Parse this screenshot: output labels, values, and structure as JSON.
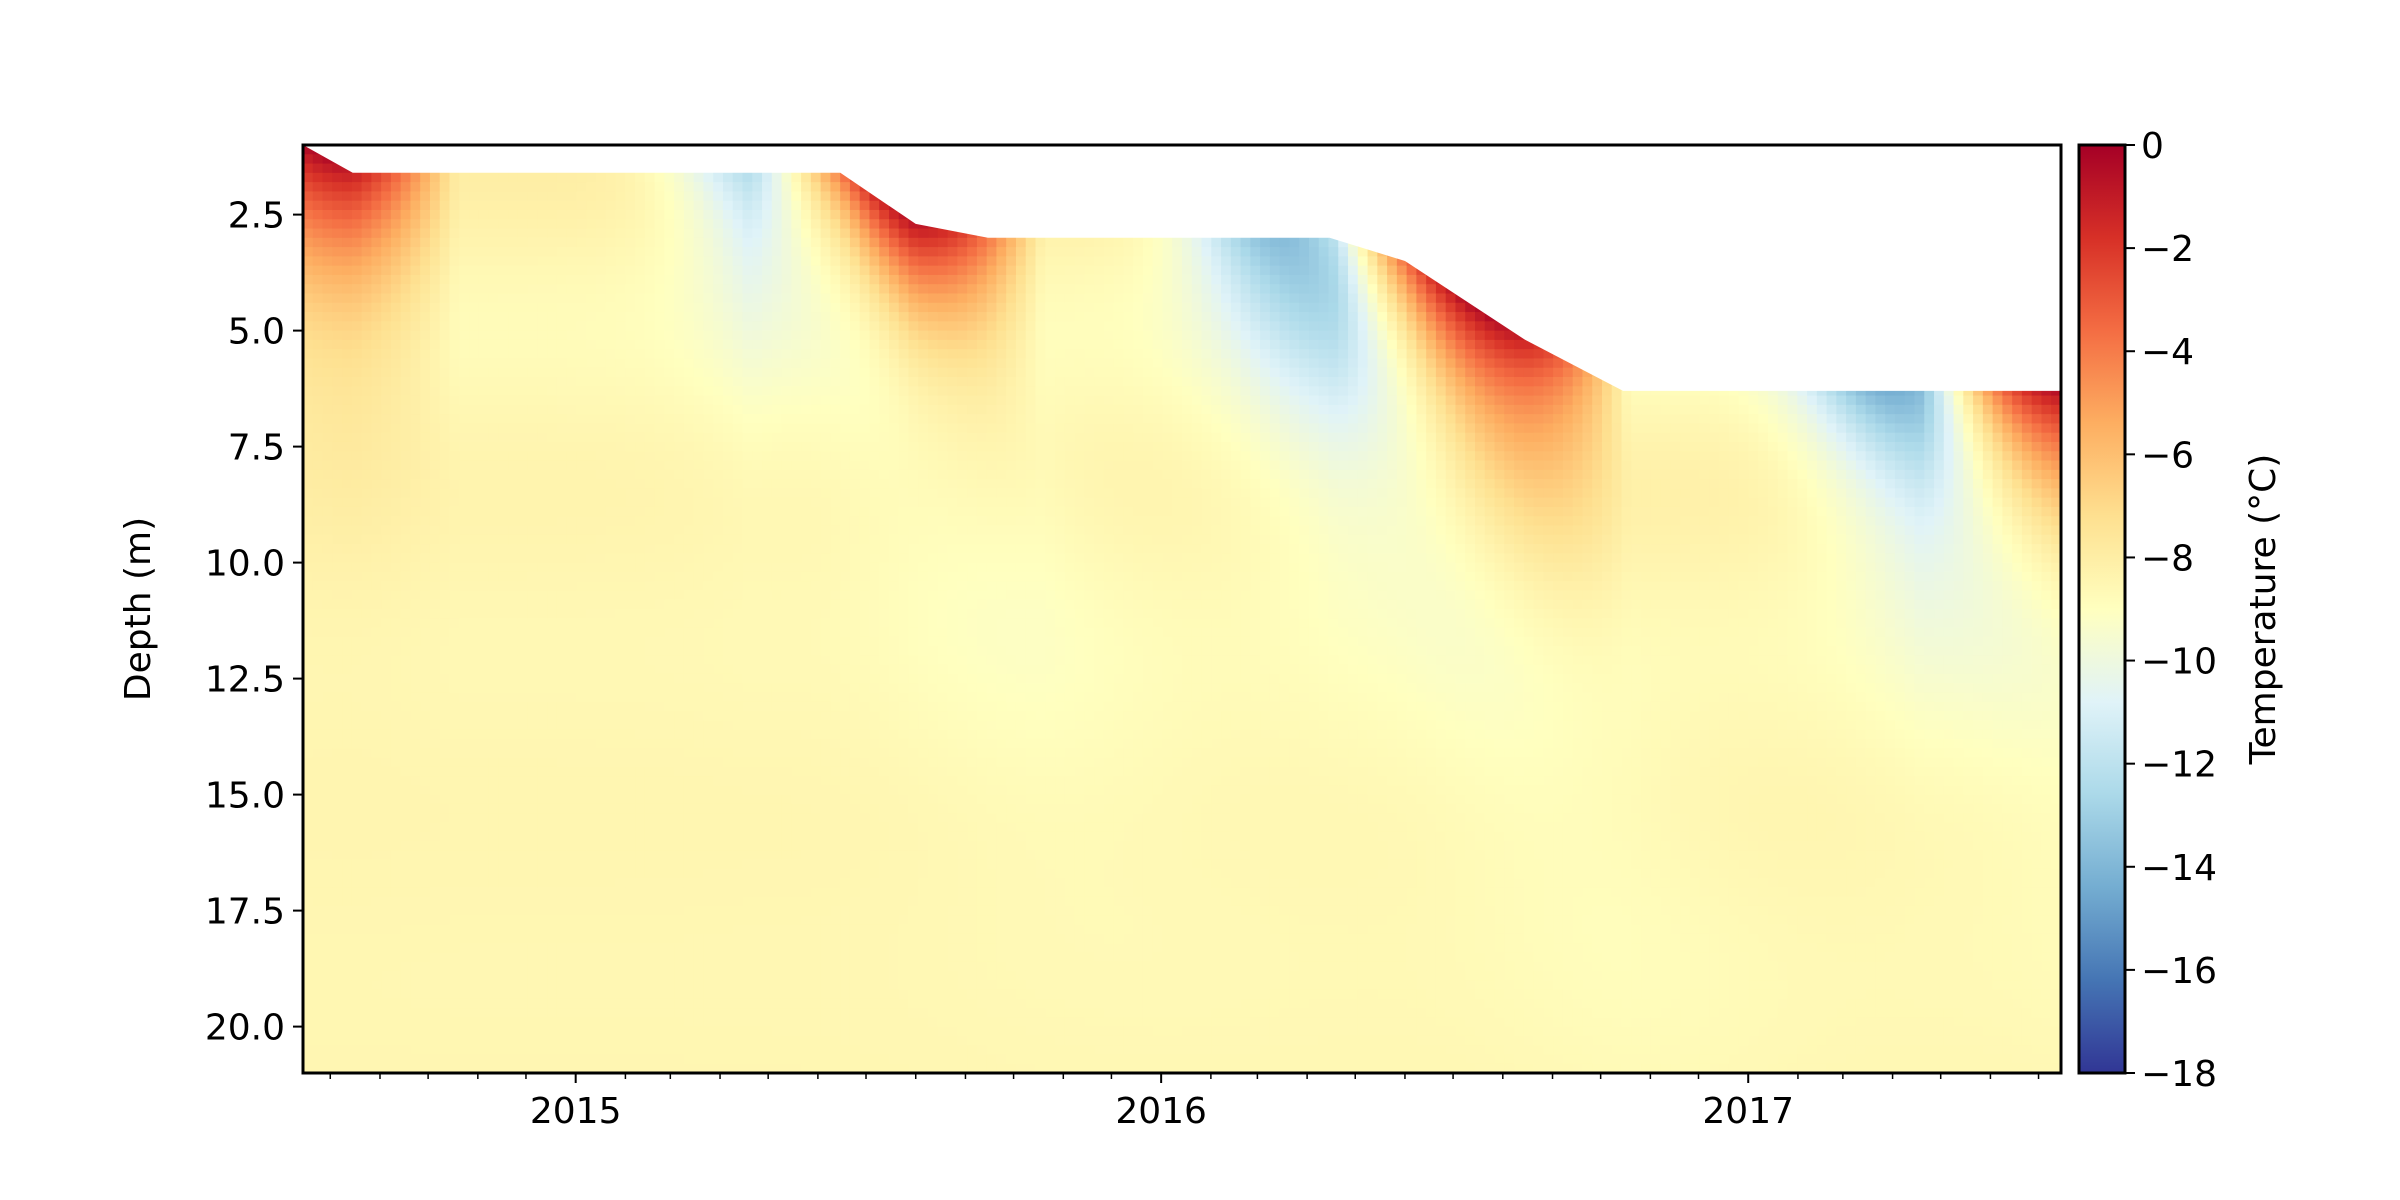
{
  "chart_data": {
    "type": "heatmap",
    "title": "",
    "xlabel": "",
    "ylabel": "Depth (m)",
    "colorbar_label": "Temperature (°C)",
    "colormap": "RdYlBu_r",
    "colormap_stops": [
      "#313695",
      "#4575b4",
      "#74add1",
      "#abd9e9",
      "#e0f3f8",
      "#ffffbf",
      "#fee090",
      "#fdae61",
      "#f46d43",
      "#d73027",
      "#a50026"
    ],
    "x_tick_labels": [
      "2015",
      "2016",
      "2017"
    ],
    "x_range": [
      "2014-07-15",
      "2017-07-15"
    ],
    "y_tick_values": [
      2.5,
      5.0,
      7.5,
      10.0,
      12.5,
      15.0,
      17.5,
      20.0
    ],
    "y_tick_labels": [
      "2.5",
      "5.0",
      "7.5",
      "10.0",
      "12.5",
      "15.0",
      "17.5",
      "20.0"
    ],
    "y_range": [
      21.0,
      1.0
    ],
    "y_inverted": true,
    "clim": [
      -18,
      0
    ],
    "colorbar_tick_values": [
      0,
      -2,
      -4,
      -6,
      -8,
      -10,
      -12,
      -14,
      -16,
      -18
    ],
    "colorbar_tick_labels": [
      "0",
      "−2",
      "−4",
      "−6",
      "−8",
      "−10",
      "−12",
      "−14",
      "−16",
      "−18"
    ],
    "surface_boundary": [
      {
        "date": "2014-07-15",
        "depth": 1.0
      },
      {
        "date": "2014-08-15",
        "depth": 1.6
      },
      {
        "date": "2015-06-15",
        "depth": 1.6
      },
      {
        "date": "2015-08-01",
        "depth": 2.7
      },
      {
        "date": "2015-09-15",
        "depth": 3.0
      },
      {
        "date": "2016-04-15",
        "depth": 3.0
      },
      {
        "date": "2016-06-01",
        "depth": 3.5
      },
      {
        "date": "2016-08-15",
        "depth": 5.2
      },
      {
        "date": "2016-10-15",
        "depth": 6.3
      },
      {
        "date": "2017-07-15",
        "depth": 6.3
      }
    ],
    "winter_cold_cores": [
      {
        "start": "2015-01-15",
        "peak": "2015-05-01",
        "min_temperature": -13
      },
      {
        "start": "2016-01-01",
        "peak": "2016-03-15",
        "min_temperature": -14
      },
      {
        "start": "2017-01-15",
        "peak": "2017-04-01",
        "min_temperature": -14
      }
    ],
    "deep_temperature": -8.5
  }
}
